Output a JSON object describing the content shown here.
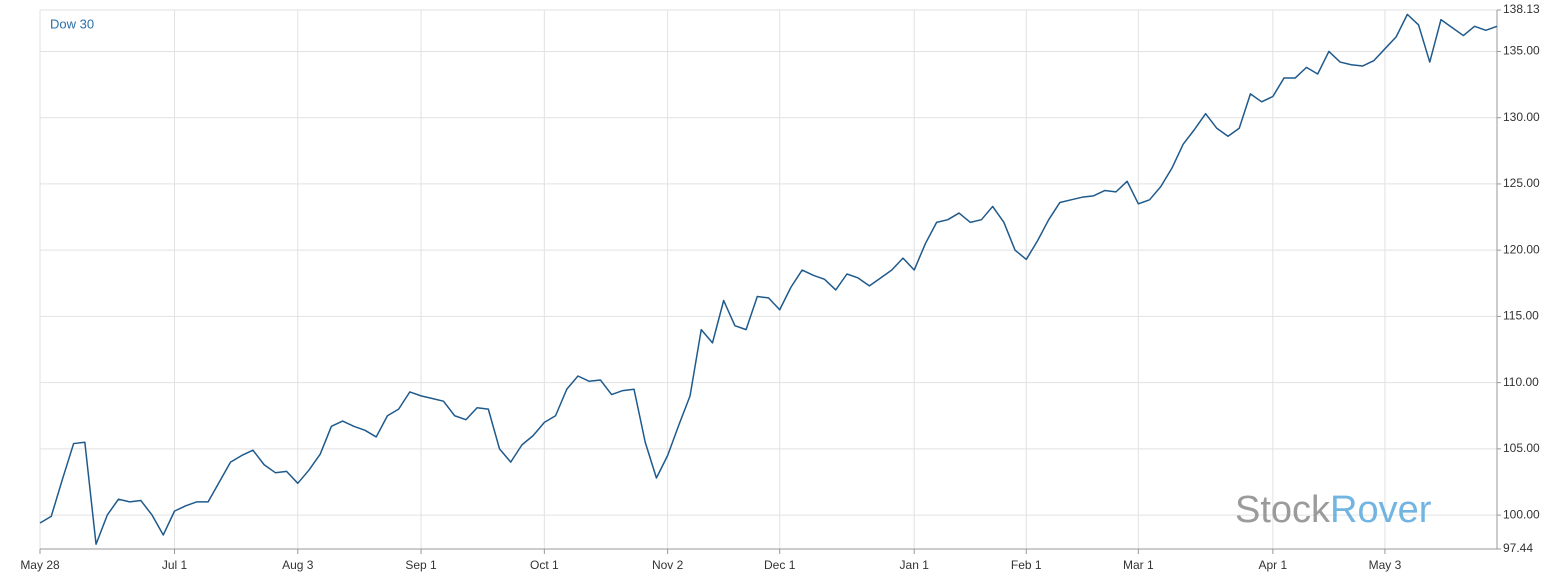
{
  "chart_data": {
    "type": "line",
    "title": "Dow 30",
    "color": "#1f5a8c",
    "grid": true,
    "watermark": [
      "Stock",
      "Rover"
    ],
    "ylim": [
      97.44,
      138.13
    ],
    "yticks": [
      97.44,
      {
        "value": 100,
        "label": "100.00"
      },
      {
        "value": 105,
        "label": "105.00"
      },
      {
        "value": 110,
        "label": "110.00"
      },
      {
        "value": 115,
        "label": "115.00"
      },
      {
        "value": 120,
        "label": "120.00"
      },
      {
        "value": 125,
        "label": "125.00"
      },
      {
        "value": 130,
        "label": "130.00"
      },
      {
        "value": 135,
        "label": "135.00"
      },
      138.13
    ],
    "categories": [
      "May 28",
      null,
      null,
      null,
      null,
      null,
      null,
      null,
      null,
      null,
      null,
      null,
      "Jul 1",
      null,
      null,
      null,
      null,
      null,
      null,
      null,
      null,
      null,
      null,
      "Aug 3",
      null,
      null,
      null,
      null,
      null,
      null,
      null,
      null,
      null,
      null,
      "Sep 1",
      null,
      null,
      null,
      null,
      null,
      null,
      null,
      null,
      null,
      null,
      "Oct 1",
      null,
      null,
      null,
      null,
      null,
      null,
      null,
      null,
      null,
      null,
      "Nov 2",
      null,
      null,
      null,
      null,
      null,
      null,
      null,
      null,
      null,
      "Dec 1",
      null,
      null,
      null,
      null,
      null,
      null,
      null,
      null,
      null,
      null,
      null,
      "Jan 1",
      null,
      null,
      null,
      null,
      null,
      null,
      null,
      null,
      null,
      "Feb 1",
      null,
      null,
      null,
      null,
      null,
      null,
      null,
      null,
      null,
      "Mar 1",
      null,
      null,
      null,
      null,
      null,
      null,
      null,
      null,
      null,
      null,
      null,
      "Apr 1",
      null,
      null,
      null,
      null,
      null,
      null,
      null,
      null,
      null,
      "May 3",
      null,
      null,
      null,
      null,
      null,
      null,
      null,
      null,
      null,
      null
    ],
    "values": [
      99.4,
      99.9,
      102.7,
      105.4,
      105.5,
      97.8,
      100.0,
      101.2,
      101.0,
      101.1,
      100.0,
      98.5,
      100.3,
      100.7,
      101.0,
      101.0,
      102.5,
      104.0,
      104.5,
      104.9,
      103.8,
      103.2,
      103.3,
      102.4,
      103.4,
      104.6,
      106.7,
      107.1,
      106.7,
      106.4,
      105.9,
      107.5,
      108.0,
      109.3,
      109.0,
      108.8,
      108.6,
      107.5,
      107.2,
      108.1,
      108.0,
      105.0,
      104.0,
      105.3,
      106.0,
      107.0,
      107.5,
      109.5,
      110.5,
      110.1,
      110.2,
      109.1,
      109.4,
      109.5,
      105.5,
      102.8,
      104.5,
      106.8,
      109.0,
      114.0,
      113.0,
      116.2,
      114.3,
      114.0,
      116.5,
      116.4,
      115.5,
      117.2,
      118.5,
      118.1,
      117.8,
      117.0,
      118.2,
      117.9,
      117.3,
      117.9,
      118.5,
      119.4,
      118.5,
      120.5,
      122.1,
      122.3,
      122.8,
      122.1,
      122.3,
      123.3,
      122.1,
      120.0,
      119.3,
      120.7,
      122.3,
      123.6,
      123.8,
      124.0,
      124.1,
      124.5,
      124.4,
      125.2,
      123.5,
      123.8,
      124.8,
      126.2,
      128.0,
      129.1,
      130.3,
      129.2,
      128.6,
      129.2,
      131.8,
      131.2,
      131.6,
      133.0,
      133.0,
      133.8,
      133.3,
      135.0,
      134.2,
      134.0,
      133.9,
      134.3,
      135.2,
      136.1,
      137.8,
      137.0,
      134.2,
      137.4,
      136.8,
      136.2,
      136.9,
      136.6,
      136.9
    ]
  }
}
